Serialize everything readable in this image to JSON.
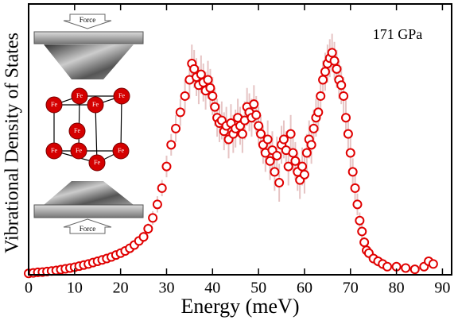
{
  "chart_data": {
    "type": "scatter",
    "title": "171 GPa",
    "x_label": "Energy (meV)",
    "y_label": "Vibrational Density of States",
    "xlim": [
      0,
      92
    ],
    "ylim": [
      0,
      100
    ],
    "xticks": [
      0,
      10,
      20,
      30,
      40,
      50,
      60,
      70,
      80,
      90
    ],
    "color": "#e00000",
    "error_color": "#e6c4c4",
    "x": [
      0,
      1,
      2,
      3,
      4,
      5,
      6,
      7,
      8,
      9,
      10,
      11,
      12,
      13,
      14,
      15,
      16,
      17,
      18,
      19,
      20,
      21,
      22,
      23,
      24,
      25,
      26,
      27,
      28,
      29,
      30,
      31,
      32,
      33,
      34,
      35,
      35.5,
      36,
      36.5,
      37,
      37.5,
      38,
      38.5,
      39,
      39.5,
      40,
      40.5,
      41,
      41.5,
      42,
      42.5,
      43,
      43.5,
      44,
      44.5,
      45,
      45.5,
      46,
      46.5,
      47,
      47.5,
      48,
      48.5,
      49,
      49.5,
      50,
      50.5,
      51,
      51.5,
      52,
      52.5,
      53,
      53.5,
      54,
      54.5,
      55,
      55.5,
      56,
      56.5,
      57,
      57.5,
      58,
      58.5,
      59,
      59.5,
      60,
      60.5,
      61,
      61.5,
      62,
      62.5,
      63,
      63.5,
      64,
      64.5,
      65,
      65.5,
      66,
      66.5,
      67,
      67.5,
      68,
      68.5,
      69,
      69.5,
      70,
      70.5,
      71,
      71.5,
      72,
      72.5,
      73,
      73.5,
      74,
      75,
      76,
      77,
      78,
      80,
      82,
      84,
      86,
      87,
      88
    ],
    "values": [
      0.5,
      0.7,
      0.9,
      1.0,
      1.2,
      1.4,
      1.6,
      1.9,
      2.2,
      2.5,
      2.8,
      3.2,
      3.6,
      4.0,
      4.5,
      5.0,
      5.5,
      6.0,
      6.6,
      7.3,
      8.0,
      8.8,
      9.8,
      11,
      12.5,
      14,
      17,
      21,
      26,
      32,
      40,
      48,
      54,
      60,
      66,
      72,
      78,
      76,
      73,
      70,
      74,
      71,
      68,
      72,
      69,
      66,
      62,
      58,
      56,
      57,
      53,
      55,
      50,
      56,
      52,
      54,
      58,
      55,
      52,
      57,
      62,
      60,
      58,
      63,
      59,
      55,
      52,
      48,
      45,
      50,
      42,
      46,
      38,
      44,
      34,
      48,
      50,
      46,
      40,
      52,
      45,
      42,
      38,
      35,
      40,
      37,
      45,
      50,
      48,
      54,
      58,
      60,
      66,
      72,
      75,
      78,
      80,
      82,
      79,
      76,
      72,
      70,
      66,
      58,
      52,
      45,
      38,
      32,
      26,
      20,
      16,
      12,
      9,
      8,
      6,
      5,
      4,
      3,
      3,
      2.5,
      2,
      3,
      5,
      4
    ],
    "errors": [
      0.3,
      0.3,
      0.3,
      0.3,
      0.3,
      0.3,
      0.3,
      0.3,
      0.3,
      0.3,
      0.5,
      0.5,
      0.5,
      0.5,
      0.5,
      0.5,
      0.5,
      0.5,
      0.5,
      0.5,
      1,
      1,
      1,
      1.5,
      1.5,
      2,
      2,
      2.5,
      3,
      3,
      4,
      4,
      5,
      5,
      6,
      7,
      7,
      7,
      7,
      7,
      7,
      7,
      7,
      7,
      7,
      7,
      7,
      7,
      7,
      7,
      7,
      7,
      7,
      7,
      7,
      7,
      7,
      7,
      7,
      7,
      7,
      7,
      7,
      7,
      7,
      7,
      7,
      7,
      7,
      7,
      7,
      7,
      7,
      7,
      7,
      7,
      7,
      7,
      7,
      7,
      7,
      7,
      7,
      7,
      7,
      7,
      7,
      7,
      7,
      7,
      7,
      7,
      7,
      7,
      7,
      7,
      7,
      7,
      7,
      7,
      7,
      7,
      7,
      7,
      7,
      6,
      5,
      5,
      4,
      3,
      3,
      2,
      2,
      2,
      2,
      2,
      2,
      1.5,
      1.5,
      1.5,
      1.5,
      1.5,
      1.5,
      1.5
    ]
  },
  "inset": {
    "force_labels": [
      "Force",
      "Force"
    ],
    "atom_labels": [
      "Fe",
      "Fe",
      "Fe",
      "Fe",
      "Fe",
      "Fe",
      "Fe",
      "Fe",
      "Fe"
    ]
  }
}
